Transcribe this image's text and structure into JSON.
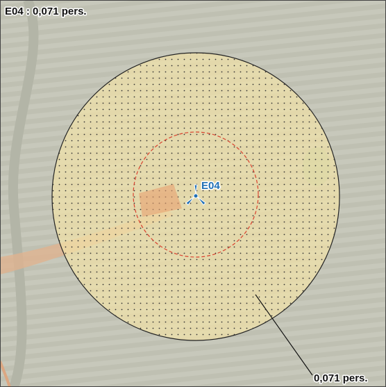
{
  "title": "E04 : 0,071 pers.",
  "turbine": {
    "label": "E04"
  },
  "zone": {
    "label": "0,071 pers."
  }
}
